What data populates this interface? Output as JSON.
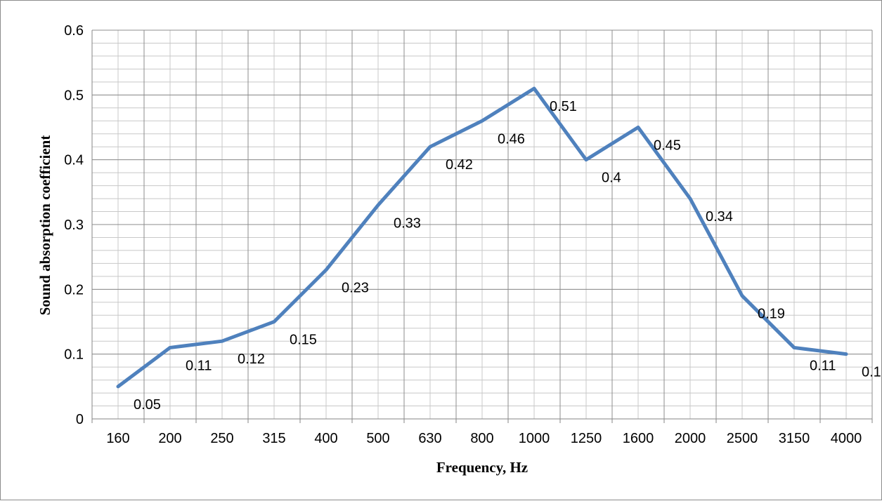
{
  "chart_data": {
    "type": "line",
    "title": "",
    "xlabel": "Frequency, Hz",
    "ylabel": "Sound absorption coefficient",
    "categories": [
      "160",
      "200",
      "250",
      "315",
      "400",
      "500",
      "630",
      "800",
      "1000",
      "1250",
      "1600",
      "2000",
      "2500",
      "3150",
      "4000"
    ],
    "series": [
      {
        "values": [
          0.05,
          0.11,
          0.12,
          0.15,
          0.23,
          0.33,
          0.42,
          0.46,
          0.51,
          0.4,
          0.45,
          0.34,
          0.19,
          0.11,
          0.1
        ],
        "data_labels": [
          "0.05",
          "0.11",
          "0.12",
          "0.15",
          "0.23",
          "0.33",
          "0.42",
          "0.46",
          "0.51",
          "0.4",
          "0.45",
          "0.34",
          "0.19",
          "0.11",
          "0.1"
        ],
        "color": "#4f81bd"
      }
    ],
    "ylim": [
      0,
      0.6
    ],
    "yticks": [
      "0",
      "0.1",
      "0.2",
      "0.3",
      "0.4",
      "0.5",
      "0.6"
    ],
    "grid": "major and minor, horizontal and vertical",
    "gridColor": "#8c8c8c",
    "minorGridColor": "#c8c8c8",
    "legend": "none"
  }
}
